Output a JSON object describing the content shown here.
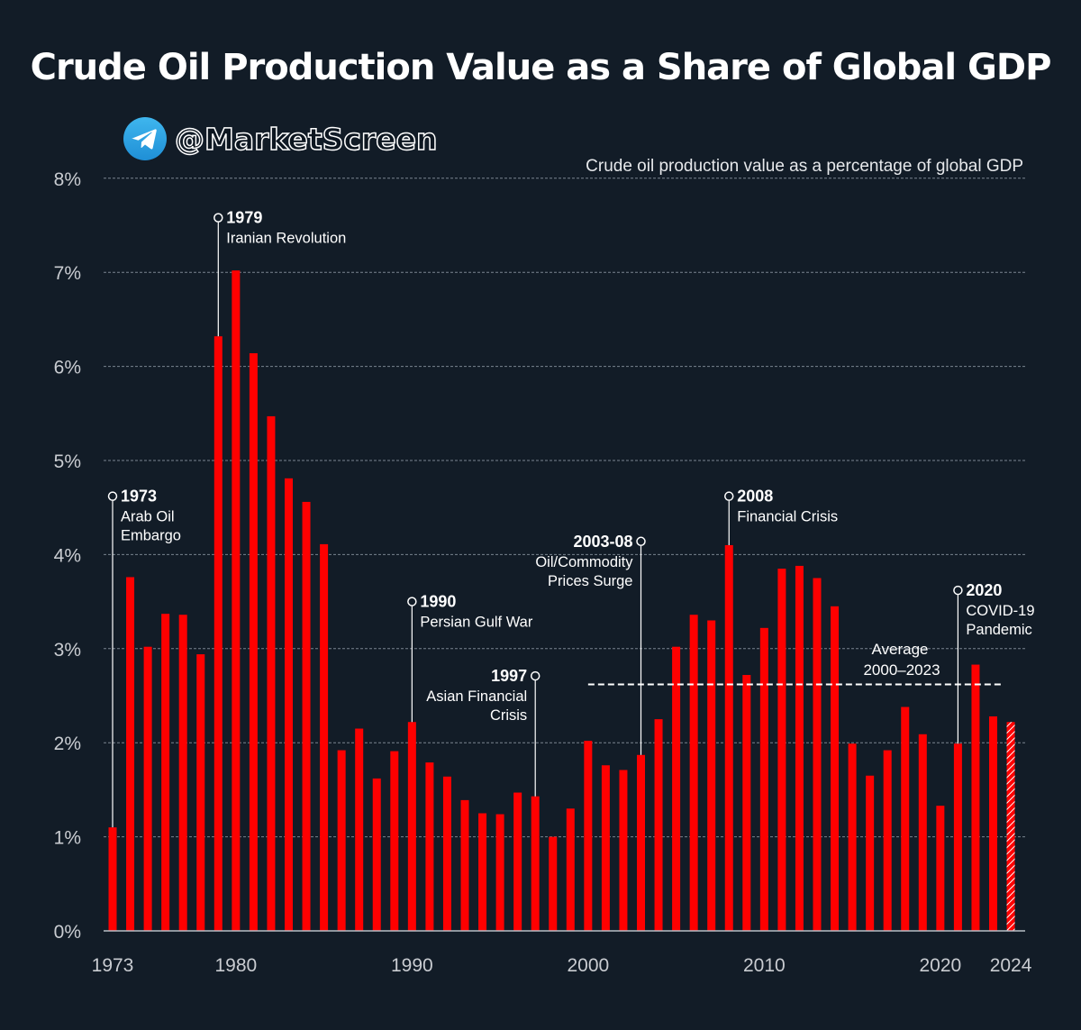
{
  "title": "Crude Oil Production Value as a Share of Global GDP",
  "watermark": {
    "handle": "@MarketScreen",
    "icon": "telegram-icon"
  },
  "colors": {
    "background": "#121c27",
    "bar": "#ff0000",
    "bar_latest_hatch": "#ffffff",
    "text": "#ffffff",
    "axis_text": "#c9ccd1",
    "grid": "#7a8490"
  },
  "chart_data": {
    "type": "bar",
    "subtitle": "Crude oil production value as a percentage of global GDP",
    "ylabel": "",
    "xlabel": "",
    "ylim": [
      0,
      8
    ],
    "y_ticks": [
      0,
      1,
      2,
      3,
      4,
      5,
      6,
      7,
      8
    ],
    "y_tick_labels": [
      "0%",
      "1%",
      "2%",
      "3%",
      "4%",
      "5%",
      "6%",
      "7%",
      "8%"
    ],
    "x_tick_labels": [
      {
        "year": 1973,
        "label": "1973"
      },
      {
        "year": 1980,
        "label": "1980"
      },
      {
        "year": 1990,
        "label": "1990"
      },
      {
        "year": 2000,
        "label": "2000"
      },
      {
        "year": 2010,
        "label": "2010"
      },
      {
        "year": 2020,
        "label": "2020"
      },
      {
        "year": 2024,
        "label": "2024"
      }
    ],
    "grid": true,
    "years": [
      1973,
      1974,
      1975,
      1976,
      1977,
      1978,
      1979,
      1980,
      1981,
      1982,
      1983,
      1984,
      1985,
      1986,
      1987,
      1988,
      1989,
      1990,
      1991,
      1992,
      1993,
      1994,
      1995,
      1996,
      1997,
      1998,
      1999,
      2000,
      2001,
      2002,
      2003,
      2004,
      2005,
      2006,
      2007,
      2008,
      2009,
      2010,
      2011,
      2012,
      2013,
      2014,
      2015,
      2016,
      2017,
      2018,
      2019,
      2020,
      2021,
      2022,
      2023,
      2024
    ],
    "values": [
      1.1,
      3.76,
      3.02,
      3.37,
      3.36,
      2.94,
      6.32,
      7.02,
      6.14,
      5.47,
      4.81,
      4.56,
      4.11,
      1.92,
      2.15,
      1.62,
      1.91,
      2.22,
      1.79,
      1.64,
      1.39,
      1.25,
      1.24,
      1.47,
      1.43,
      1.0,
      1.3,
      2.02,
      1.76,
      1.71,
      1.87,
      2.25,
      3.02,
      3.36,
      3.3,
      4.1,
      2.72,
      3.22,
      3.85,
      3.88,
      3.75,
      3.45,
      1.99,
      1.65,
      1.92,
      2.38,
      2.09,
      1.33,
      1.99,
      2.83,
      2.28,
      2.22
    ],
    "highlighted_year": 2024,
    "average": {
      "label_line1": "Average",
      "label_line2": "2000–2023",
      "value": 2.62,
      "from_year": 2000,
      "to_year": 2023
    },
    "annotations": [
      {
        "year": 1973,
        "value": 4.62,
        "title": "1973",
        "lines": [
          "Arab Oil",
          "Embargo"
        ],
        "align": "left"
      },
      {
        "year": 1979,
        "value": 7.58,
        "title": "1979",
        "lines": [
          "Iranian Revolution"
        ],
        "align": "left"
      },
      {
        "year": 1990,
        "value": 3.5,
        "title": "1990",
        "lines": [
          "Persian Gulf War"
        ],
        "align": "left"
      },
      {
        "year": 1997,
        "value": 2.71,
        "title": "1997",
        "lines": [
          "Asian Financial",
          "Crisis"
        ],
        "align": "right"
      },
      {
        "year": 2003,
        "value": 4.14,
        "title": "2003-08",
        "lines": [
          "Oil/Commodity",
          "Prices Surge"
        ],
        "align": "right"
      },
      {
        "year": 2008,
        "value": 4.62,
        "title": "2008",
        "lines": [
          "Financial Crisis"
        ],
        "align": "left"
      },
      {
        "year": 2021,
        "value": 3.62,
        "title": "2020",
        "lines": [
          "COVID-19",
          "Pandemic"
        ],
        "align": "left"
      }
    ]
  }
}
